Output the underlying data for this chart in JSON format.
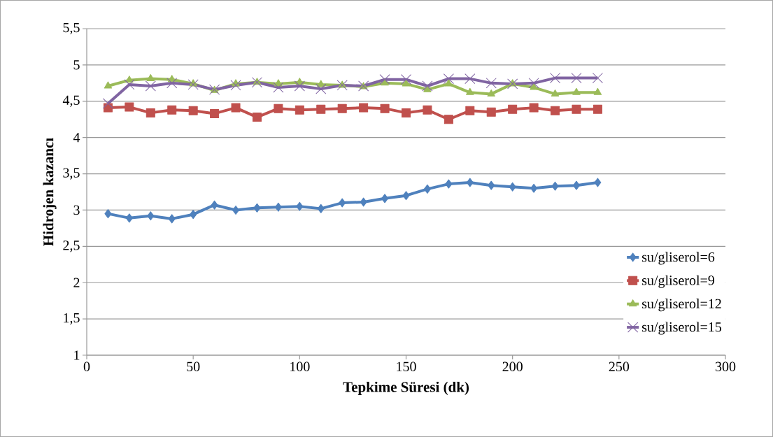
{
  "chart_data": {
    "type": "line",
    "xlabel": "Tepkime Süresi (dk)",
    "ylabel": "Hidrojen kazancı",
    "x": [
      10,
      20,
      30,
      40,
      50,
      60,
      70,
      80,
      90,
      100,
      110,
      120,
      130,
      140,
      150,
      160,
      170,
      180,
      190,
      200,
      210,
      220,
      230,
      240
    ],
    "series": [
      {
        "name": "su/gliserol=6",
        "color": "#4f81bd",
        "marker": "diamond",
        "values": [
          2.95,
          2.89,
          2.92,
          2.88,
          2.94,
          3.07,
          3.0,
          3.03,
          3.04,
          3.05,
          3.02,
          3.1,
          3.11,
          3.16,
          3.2,
          3.29,
          3.36,
          3.38,
          3.34,
          3.32,
          3.3,
          3.33,
          3.34,
          3.38
        ]
      },
      {
        "name": "su/gliserol=9",
        "color": "#c0504d",
        "marker": "square",
        "values": [
          4.41,
          4.42,
          4.34,
          4.38,
          4.37,
          4.33,
          4.41,
          4.28,
          4.4,
          4.38,
          4.39,
          4.4,
          4.41,
          4.4,
          4.34,
          4.38,
          4.25,
          4.37,
          4.35,
          4.39,
          4.41,
          4.37,
          4.39,
          4.39
        ]
      },
      {
        "name": "su/gliserol=12",
        "color": "#9bbb59",
        "marker": "triangle",
        "values": [
          4.71,
          4.79,
          4.81,
          4.8,
          4.74,
          4.65,
          4.74,
          4.76,
          4.74,
          4.76,
          4.73,
          4.72,
          4.7,
          4.75,
          4.74,
          4.66,
          4.74,
          4.62,
          4.6,
          4.74,
          4.69,
          4.6,
          4.62,
          4.62
        ]
      },
      {
        "name": "su/gliserol=15",
        "color": "#8064a2",
        "marker": "cross",
        "values": [
          4.47,
          4.73,
          4.71,
          4.75,
          4.73,
          4.66,
          4.72,
          4.76,
          4.69,
          4.71,
          4.67,
          4.72,
          4.71,
          4.8,
          4.8,
          4.71,
          4.81,
          4.81,
          4.75,
          4.74,
          4.75,
          4.82,
          4.82,
          4.82
        ]
      }
    ],
    "xlim": [
      0,
      300
    ],
    "xticks": [
      0,
      50,
      100,
      150,
      200,
      250,
      300
    ],
    "ylim": [
      1,
      5.5
    ],
    "yticks": [
      1,
      {
        "value": 1.5,
        "label": "1,5"
      },
      2,
      {
        "value": 2.5,
        "label": "2,5"
      },
      3,
      {
        "value": 3.5,
        "label": "3,5"
      },
      4,
      {
        "value": 4.5,
        "label": "4,5"
      },
      5,
      {
        "value": 5.5,
        "label": "5,5"
      }
    ],
    "grid": "y",
    "legend": "right",
    "line_style": "solid"
  }
}
